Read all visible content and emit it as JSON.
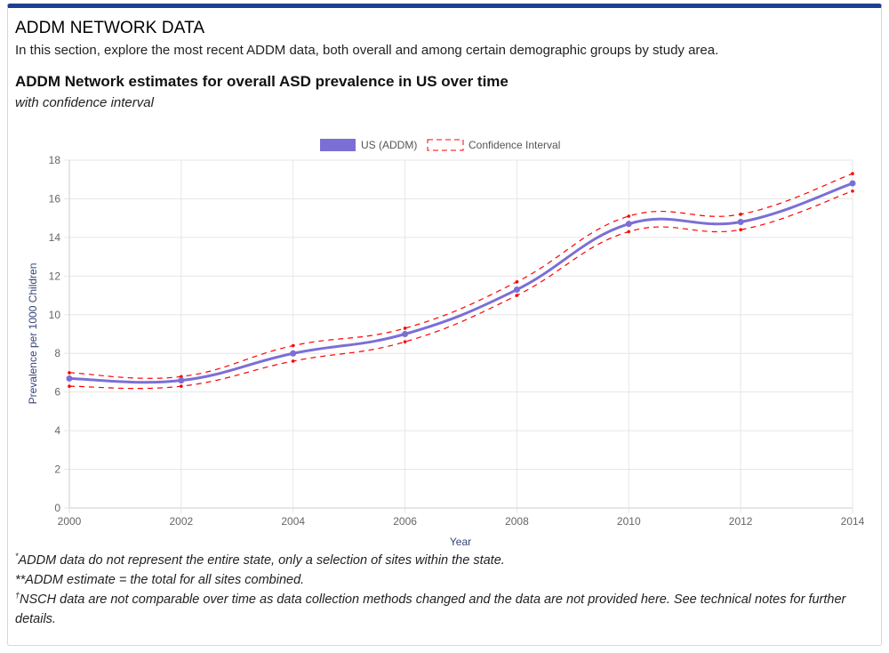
{
  "section": {
    "title": "ADDM NETWORK DATA",
    "description": "In this section, explore the most recent ADDM data, both overall and among certain demographic groups by study area."
  },
  "chart_header": {
    "title": "ADDM Network estimates for overall ASD prevalence in US over time",
    "subtitle": "with confidence interval"
  },
  "colors": {
    "series": "#7b6fd6",
    "confidence": "#ff0000",
    "grid": "#e6e6e6",
    "axis_title": "#33447a",
    "top_border": "#1d3f8f"
  },
  "chart_data": {
    "type": "line",
    "x": [
      2000,
      2002,
      2004,
      2006,
      2008,
      2010,
      2012,
      2014
    ],
    "series": [
      {
        "name": "US (ADDM)",
        "values": [
          6.7,
          6.6,
          8.0,
          9.0,
          11.3,
          14.7,
          14.8,
          16.8
        ]
      }
    ],
    "confidence_interval": {
      "name": "Confidence Interval",
      "upper": [
        7.0,
        6.8,
        8.4,
        9.3,
        11.7,
        15.1,
        15.2,
        17.3
      ],
      "lower": [
        6.3,
        6.3,
        7.6,
        8.6,
        11.0,
        14.3,
        14.4,
        16.4
      ]
    },
    "xlabel": "Year",
    "ylabel": "Prevalence per 1000 Children",
    "xlim": [
      2000,
      2014
    ],
    "ylim": [
      0,
      18
    ],
    "x_ticks": [
      2000,
      2002,
      2004,
      2006,
      2008,
      2010,
      2012,
      2014
    ],
    "y_ticks": [
      0,
      2,
      4,
      6,
      8,
      10,
      12,
      14,
      16,
      18
    ],
    "grid": true,
    "legend_position": "top-center"
  },
  "footnotes": [
    {
      "mark": "*",
      "text": "ADDM data do not represent the entire state, only a selection of sites within the state."
    },
    {
      "mark": "",
      "text": "**ADDM estimate = the total for all sites combined."
    },
    {
      "mark": "†",
      "text": "NSCH data are not comparable over time as data collection methods changed and the data are not provided here. See technical notes for further details."
    }
  ]
}
